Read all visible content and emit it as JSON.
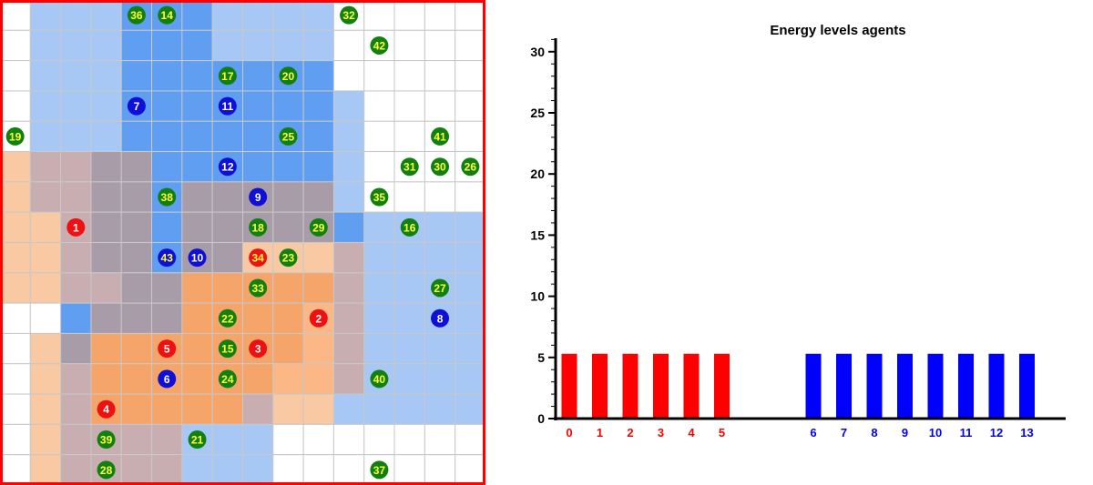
{
  "grid": {
    "cols": 16,
    "rows": 16,
    "border_color": "#ff0000",
    "colors": {
      "empty": "#ffffff",
      "blue_light": "#a7c8f5",
      "blue_dark": "#5f9ef0",
      "orange_light": "#f9c9a3",
      "orange_dark": "#f5a46a",
      "mauve": "#c8aeb0",
      "gray_mauve": "#a89ca8",
      "agent_green": "#118011",
      "agent_blue": "#0f0fd8",
      "agent_red": "#ee1111",
      "label_yellow": "#ffff33",
      "label_white": "#ffffff"
    },
    "cell_rows": [
      "WLLLDDDLLLLWWWWW",
      "WLLLDDDLLLLWWWWW",
      "WLLLDDDDDDDWWWWW",
      "WLLLDDDDDDDLWWWW",
      "WLLLDDDDDDDLWWWW",
      "OMMGGDDDDDDLWWWW",
      "OMMGGDGGGGGLWWWW",
      "OOMGGDGGGGGDLLLL",
      "OOMGGDGGOOOMLLLL",
      "OOMMGGHHHHHMLLLL",
      "WWDGGGHHHHRMLLLL",
      "WOGHHHHHHHRMLLLL",
      "WOMHHHHHHRRMLLLL",
      "WOMHHHHHMOOLLLLL",
      "WOMMMMLLLWWWWWWW",
      "WOMMMMLLLWWWWWWW"
    ],
    "agents": [
      {
        "id": "36",
        "col": 4,
        "row": 0,
        "team": "green"
      },
      {
        "id": "14",
        "col": 5,
        "row": 0,
        "team": "green"
      },
      {
        "id": "32",
        "col": 11,
        "row": 0,
        "team": "green"
      },
      {
        "id": "42",
        "col": 12,
        "row": 1,
        "team": "green"
      },
      {
        "id": "17",
        "col": 7,
        "row": 2,
        "team": "green"
      },
      {
        "id": "20",
        "col": 9,
        "row": 2,
        "team": "green"
      },
      {
        "id": "7",
        "col": 4,
        "row": 3,
        "team": "blue"
      },
      {
        "id": "11",
        "col": 7,
        "row": 3,
        "team": "blue"
      },
      {
        "id": "19",
        "col": 0,
        "row": 4,
        "team": "green"
      },
      {
        "id": "25",
        "col": 9,
        "row": 4,
        "team": "green"
      },
      {
        "id": "41",
        "col": 14,
        "row": 4,
        "team": "green"
      },
      {
        "id": "12",
        "col": 7,
        "row": 5,
        "team": "blue"
      },
      {
        "id": "31",
        "col": 13,
        "row": 5,
        "team": "green"
      },
      {
        "id": "30",
        "col": 14,
        "row": 5,
        "team": "green"
      },
      {
        "id": "26",
        "col": 15,
        "row": 5,
        "team": "green"
      },
      {
        "id": "38",
        "col": 5,
        "row": 6,
        "team": "green"
      },
      {
        "id": "9",
        "col": 8,
        "row": 6,
        "team": "blue"
      },
      {
        "id": "35",
        "col": 12,
        "row": 6,
        "team": "green"
      },
      {
        "id": "1",
        "col": 2,
        "row": 7,
        "team": "red"
      },
      {
        "id": "18",
        "col": 8,
        "row": 7,
        "team": "green"
      },
      {
        "id": "29",
        "col": 10,
        "row": 7,
        "team": "green"
      },
      {
        "id": "16",
        "col": 13,
        "row": 7,
        "team": "green"
      },
      {
        "id": "43",
        "col": 5,
        "row": 8,
        "team": "blue",
        "label_color": "yellow"
      },
      {
        "id": "10",
        "col": 6,
        "row": 8,
        "team": "blue"
      },
      {
        "id": "34",
        "col": 8,
        "row": 8,
        "team": "red",
        "label_color": "yellow"
      },
      {
        "id": "23",
        "col": 9,
        "row": 8,
        "team": "green"
      },
      {
        "id": "33",
        "col": 8,
        "row": 9,
        "team": "green"
      },
      {
        "id": "27",
        "col": 14,
        "row": 9,
        "team": "green"
      },
      {
        "id": "22",
        "col": 7,
        "row": 10,
        "team": "green"
      },
      {
        "id": "2",
        "col": 10,
        "row": 10,
        "team": "red"
      },
      {
        "id": "8",
        "col": 14,
        "row": 10,
        "team": "blue"
      },
      {
        "id": "5",
        "col": 5,
        "row": 11,
        "team": "red"
      },
      {
        "id": "15",
        "col": 7,
        "row": 11,
        "team": "green"
      },
      {
        "id": "3",
        "col": 8,
        "row": 11,
        "team": "red"
      },
      {
        "id": "6",
        "col": 5,
        "row": 12,
        "team": "blue"
      },
      {
        "id": "24",
        "col": 7,
        "row": 12,
        "team": "green"
      },
      {
        "id": "40",
        "col": 12,
        "row": 12,
        "team": "green"
      },
      {
        "id": "4",
        "col": 3,
        "row": 13,
        "team": "red"
      },
      {
        "id": "39",
        "col": 3,
        "row": 14,
        "team": "green"
      },
      {
        "id": "21",
        "col": 6,
        "row": 14,
        "team": "green"
      },
      {
        "id": "28",
        "col": 3,
        "row": 15,
        "team": "green"
      },
      {
        "id": "37",
        "col": 12,
        "row": 15,
        "team": "green"
      }
    ]
  },
  "chart_data": {
    "type": "bar",
    "title": "Energy levels agents",
    "xlabel": "",
    "ylabel": "",
    "ylim": [
      0,
      31
    ],
    "yticks": [
      "0",
      "5",
      "10",
      "15",
      "20",
      "25",
      "30"
    ],
    "grid": false,
    "categories": [
      "0",
      "1",
      "2",
      "3",
      "4",
      "5",
      "6",
      "7",
      "8",
      "9",
      "10",
      "11",
      "12",
      "13"
    ],
    "values": [
      5.3,
      5.3,
      5.3,
      5.3,
      5.3,
      5.3,
      5.3,
      5.3,
      5.3,
      5.3,
      5.3,
      5.3,
      5.3,
      5.3
    ],
    "colors": [
      "#ff0000",
      "#ff0000",
      "#ff0000",
      "#ff0000",
      "#ff0000",
      "#ff0000",
      "#0000ff",
      "#0000ff",
      "#0000ff",
      "#0000ff",
      "#0000ff",
      "#0000ff",
      "#0000ff",
      "#0000ff"
    ],
    "axis_color": "#000000"
  }
}
